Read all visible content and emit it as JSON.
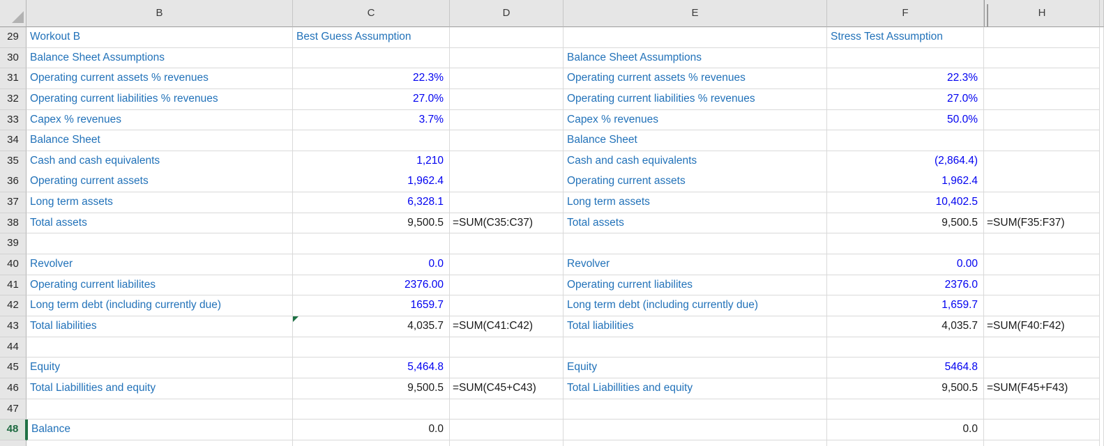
{
  "app": {
    "type": "spreadsheet-grid",
    "visible_range": "B29:H48",
    "hidden_columns": [
      "A",
      "G"
    ]
  },
  "colors": {
    "label_text": "#2272b9",
    "input_text": "#0000f0",
    "calculated_text": "#1a1a1a",
    "header_bg": "#e6e6e6",
    "gridline": "#d9d9d9",
    "selection_accent": "#217346",
    "error_flag": "#1e7145"
  },
  "columns": [
    {
      "key": "corner",
      "label": ""
    },
    {
      "key": "B",
      "label": "B"
    },
    {
      "key": "C",
      "label": "C"
    },
    {
      "key": "D",
      "label": "D"
    },
    {
      "key": "E",
      "label": "E"
    },
    {
      "key": "F",
      "label": "F"
    },
    {
      "key": "H",
      "label": "H",
      "hidden_before": true
    },
    {
      "key": "stub",
      "label": ""
    }
  ],
  "rows": [
    {
      "n": "29",
      "cells": [
        {
          "col": "B",
          "v": "Workout B",
          "s": "label"
        },
        {
          "col": "C",
          "v": "Best Guess Assumption",
          "s": "label"
        },
        {
          "col": "F",
          "v": "Stress Test Assumption",
          "s": "label"
        }
      ]
    },
    {
      "n": "30",
      "cells": [
        {
          "col": "B",
          "v": "Balance Sheet Assumptions",
          "s": "label"
        },
        {
          "col": "E",
          "v": "Balance Sheet Assumptions",
          "s": "label"
        }
      ]
    },
    {
      "n": "31",
      "cells": [
        {
          "col": "B",
          "v": "Operating current assets % revenues",
          "s": "label"
        },
        {
          "col": "C",
          "v": "22.3%",
          "s": "input"
        },
        {
          "col": "E",
          "v": "Operating current assets % revenues",
          "s": "label"
        },
        {
          "col": "F",
          "v": "22.3%",
          "s": "input"
        }
      ]
    },
    {
      "n": "32",
      "cells": [
        {
          "col": "B",
          "v": "Operating current liabilities % revenues",
          "s": "label"
        },
        {
          "col": "C",
          "v": "27.0%",
          "s": "input"
        },
        {
          "col": "E",
          "v": "Operating current liabilities % revenues",
          "s": "label"
        },
        {
          "col": "F",
          "v": "27.0%",
          "s": "input"
        }
      ]
    },
    {
      "n": "33",
      "cells": [
        {
          "col": "B",
          "v": "Capex % revenues",
          "s": "label"
        },
        {
          "col": "C",
          "v": "3.7%",
          "s": "input"
        },
        {
          "col": "E",
          "v": "Capex % revenues",
          "s": "label"
        },
        {
          "col": "F",
          "v": "50.0%",
          "s": "input"
        }
      ]
    },
    {
      "n": "34",
      "cells": [
        {
          "col": "B",
          "v": "Balance Sheet",
          "s": "label"
        },
        {
          "col": "E",
          "v": "Balance Sheet",
          "s": "label"
        }
      ]
    },
    {
      "n": "35",
      "cells": [
        {
          "col": "B",
          "v": "Cash and cash equivalents",
          "s": "label"
        },
        {
          "col": "C",
          "v": "1,210",
          "s": "input"
        },
        {
          "col": "E",
          "v": "Cash and cash equivalents",
          "s": "label"
        },
        {
          "col": "F",
          "v": "(2,864.4)",
          "s": "input"
        }
      ]
    },
    {
      "n": "36",
      "cells": [
        {
          "col": "B",
          "v": "Operating current assets",
          "s": "label"
        },
        {
          "col": "C",
          "v": "1,962.4",
          "s": "input"
        },
        {
          "col": "E",
          "v": "Operating current assets",
          "s": "label"
        },
        {
          "col": "F",
          "v": "1,962.4",
          "s": "input"
        }
      ]
    },
    {
      "n": "37",
      "cells": [
        {
          "col": "B",
          "v": "Long term assets",
          "s": "label"
        },
        {
          "col": "C",
          "v": "6,328.1",
          "s": "input"
        },
        {
          "col": "E",
          "v": "Long term assets",
          "s": "label"
        },
        {
          "col": "F",
          "v": "10,402.5",
          "s": "input"
        }
      ]
    },
    {
      "n": "38",
      "cells": [
        {
          "col": "B",
          "v": "Total assets",
          "s": "label"
        },
        {
          "col": "C",
          "v": "9,500.5",
          "s": "calc"
        },
        {
          "col": "D",
          "v": "=SUM(C35:C37)",
          "s": "formula"
        },
        {
          "col": "E",
          "v": "Total assets",
          "s": "label"
        },
        {
          "col": "F",
          "v": "9,500.5",
          "s": "calc"
        },
        {
          "col": "H",
          "v": "=SUM(F35:F37)",
          "s": "formula"
        }
      ]
    },
    {
      "n": "39",
      "cells": []
    },
    {
      "n": "40",
      "cells": [
        {
          "col": "B",
          "v": "Revolver",
          "s": "label"
        },
        {
          "col": "C",
          "v": "0.0",
          "s": "input"
        },
        {
          "col": "E",
          "v": "Revolver",
          "s": "label"
        },
        {
          "col": "F",
          "v": "0.00",
          "s": "input"
        }
      ]
    },
    {
      "n": "41",
      "cells": [
        {
          "col": "B",
          "v": "Operating current liabilites",
          "s": "label"
        },
        {
          "col": "C",
          "v": "2376.00",
          "s": "input"
        },
        {
          "col": "E",
          "v": "Operating current liabilites",
          "s": "label"
        },
        {
          "col": "F",
          "v": "2376.0",
          "s": "input"
        }
      ]
    },
    {
      "n": "42",
      "cells": [
        {
          "col": "B",
          "v": "Long term debt (including currently due)",
          "s": "label"
        },
        {
          "col": "C",
          "v": "1659.7",
          "s": "input"
        },
        {
          "col": "E",
          "v": "Long term debt (including currently due)",
          "s": "label"
        },
        {
          "col": "F",
          "v": "1,659.7",
          "s": "input"
        }
      ]
    },
    {
      "n": "43",
      "cells": [
        {
          "col": "B",
          "v": "Total liabilities",
          "s": "label"
        },
        {
          "col": "C",
          "v": "4,035.7",
          "s": "calc",
          "flag": true
        },
        {
          "col": "D",
          "v": "=SUM(C41:C42)",
          "s": "formula"
        },
        {
          "col": "E",
          "v": "Total liabilities",
          "s": "label"
        },
        {
          "col": "F",
          "v": "4,035.7",
          "s": "calc"
        },
        {
          "col": "H",
          "v": "=SUM(F40:F42)",
          "s": "formula"
        }
      ]
    },
    {
      "n": "44",
      "cells": []
    },
    {
      "n": "45",
      "cells": [
        {
          "col": "B",
          "v": "Equity",
          "s": "label"
        },
        {
          "col": "C",
          "v": "5,464.8",
          "s": "input"
        },
        {
          "col": "E",
          "v": "Equity",
          "s": "label"
        },
        {
          "col": "F",
          "v": "5464.8",
          "s": "input"
        }
      ]
    },
    {
      "n": "46",
      "cells": [
        {
          "col": "B",
          "v": "Total Liabillities and equity",
          "s": "label"
        },
        {
          "col": "C",
          "v": "9,500.5",
          "s": "calc"
        },
        {
          "col": "D",
          "v": "=SUM(C45+C43)",
          "s": "formula"
        },
        {
          "col": "E",
          "v": "Total Liabillities and equity",
          "s": "label"
        },
        {
          "col": "F",
          "v": "9,500.5",
          "s": "calc"
        },
        {
          "col": "H",
          "v": "=SUM(F45+F43)",
          "s": "formula"
        }
      ]
    },
    {
      "n": "47",
      "cells": []
    },
    {
      "n": "48",
      "hdr_sel": true,
      "sel_left_col": "B",
      "cells": [
        {
          "col": "B",
          "v": "Balance",
          "s": "label"
        },
        {
          "col": "C",
          "v": "0.0",
          "s": "calc"
        },
        {
          "col": "F",
          "v": "0.0",
          "s": "calc"
        }
      ]
    }
  ]
}
